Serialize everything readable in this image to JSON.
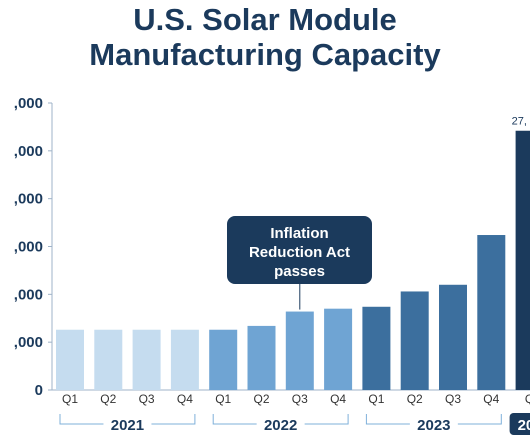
{
  "title_lines": [
    "U.S. Solar Module",
    "Manufacturing Capacity"
  ],
  "chart_data": {
    "type": "bar",
    "title": "U.S. Solar Module Manufacturing Capacity",
    "xlabel": "",
    "ylabel": "",
    "ylim": [
      0,
      30000
    ],
    "yticks": [
      0,
      5000,
      10000,
      15000,
      20000,
      25000,
      30000
    ],
    "ytick_labels": [
      "0",
      ",000",
      ",000",
      ",000",
      ",000",
      ",000",
      ",000"
    ],
    "categories": [
      "Q1",
      "Q2",
      "Q3",
      "Q4",
      "Q1",
      "Q2",
      "Q3",
      "Q4",
      "Q1",
      "Q2",
      "Q3",
      "Q4",
      "Q"
    ],
    "groups": [
      {
        "label": "2021",
        "color": "#c5dcef",
        "count": 4
      },
      {
        "label": "2022",
        "color": "#6fa4d3",
        "count": 4
      },
      {
        "label": "2023",
        "color": "#3c6f9e",
        "count": 4
      },
      {
        "label": "20",
        "color": "#1b3a5c",
        "count": 1
      }
    ],
    "values": [
      6300,
      6300,
      6300,
      6300,
      6300,
      6700,
      8200,
      8500,
      8700,
      10300,
      11000,
      16200,
      27100
    ],
    "data_labels": [
      {
        "index": 12,
        "text": "27,"
      }
    ],
    "annotation": {
      "text": [
        "Inflation",
        "Reduction Act",
        "passes"
      ],
      "index": 6,
      "color": "#1b3a5c"
    },
    "grid": false,
    "legend": "none"
  }
}
